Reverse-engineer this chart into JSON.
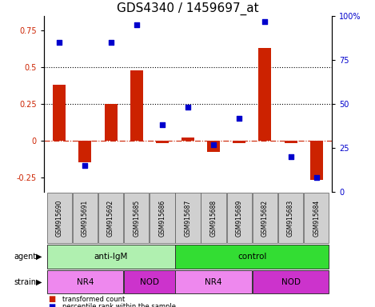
{
  "title": "GDS4340 / 1459697_at",
  "samples": [
    "GSM915690",
    "GSM915691",
    "GSM915692",
    "GSM915685",
    "GSM915686",
    "GSM915687",
    "GSM915688",
    "GSM915689",
    "GSM915682",
    "GSM915683",
    "GSM915684"
  ],
  "transformed_count": [
    0.38,
    -0.15,
    0.25,
    0.48,
    -0.02,
    0.02,
    -0.08,
    -0.02,
    0.63,
    -0.02,
    -0.27
  ],
  "percentile_rank": [
    85,
    15,
    85,
    95,
    38,
    48,
    27,
    42,
    97,
    20,
    8
  ],
  "bar_color": "#cc2200",
  "dot_color": "#0000cc",
  "agent_groups": [
    {
      "label": "anti-IgM",
      "start": 0,
      "end": 5,
      "color": "#b0f0b0"
    },
    {
      "label": "control",
      "start": 5,
      "end": 11,
      "color": "#33dd33"
    }
  ],
  "strain_groups": [
    {
      "label": "NR4",
      "start": 0,
      "end": 3,
      "color": "#ee88ee"
    },
    {
      "label": "NOD",
      "start": 3,
      "end": 5,
      "color": "#cc33cc"
    },
    {
      "label": "NR4",
      "start": 5,
      "end": 8,
      "color": "#ee88ee"
    },
    {
      "label": "NOD",
      "start": 8,
      "end": 11,
      "color": "#cc33cc"
    }
  ],
  "ylim_left": [
    -0.35,
    0.85
  ],
  "ylim_right": [
    0,
    100
  ],
  "yticks_left": [
    -0.25,
    0,
    0.25,
    0.5,
    0.75
  ],
  "yticks_right": [
    0,
    25,
    50,
    75,
    100
  ],
  "hlines": [
    0.25,
    0.5
  ],
  "zero_line_color": "#cc2200",
  "hline_color": "#000000",
  "background_color": "#ffffff",
  "plot_bg": "#ffffff",
  "title_fontsize": 11,
  "tick_fontsize": 7,
  "sample_fontsize": 5.5,
  "label_fontsize": 7.5,
  "bar_width": 0.5,
  "sample_box_color": "#d0d0d0"
}
